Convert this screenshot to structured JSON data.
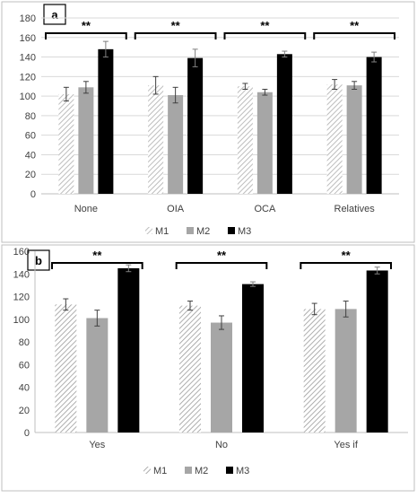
{
  "chart_data": [
    {
      "panel_label": "a",
      "type": "bar",
      "categories": [
        "None",
        "OIA",
        "OCA",
        "Relatives"
      ],
      "series": [
        {
          "name": "M1",
          "pattern": "hatched-light",
          "values": [
            102,
            111,
            110,
            112
          ],
          "errors": [
            7,
            9,
            3,
            5
          ]
        },
        {
          "name": "M2",
          "pattern": "solid-gray",
          "values": [
            109,
            101,
            104,
            111
          ],
          "errors": [
            6,
            8,
            3,
            4
          ]
        },
        {
          "name": "M3",
          "pattern": "solid-black",
          "values": [
            148,
            139,
            143,
            140
          ],
          "errors": [
            8,
            9,
            3,
            5
          ]
        }
      ],
      "ylim": [
        0,
        180
      ],
      "yticks": [
        0,
        20,
        40,
        60,
        80,
        100,
        120,
        140,
        160,
        180
      ],
      "grid": true,
      "legend": "bottom-center",
      "significance": [
        "**",
        "**",
        "**",
        "**"
      ]
    },
    {
      "panel_label": "b",
      "type": "bar",
      "categories": [
        "Yes",
        "No",
        "Yes if"
      ],
      "series": [
        {
          "name": "M1",
          "pattern": "hatched-light",
          "values": [
            113,
            112,
            109
          ],
          "errors": [
            5,
            4,
            5
          ]
        },
        {
          "name": "M2",
          "pattern": "solid-gray",
          "values": [
            101,
            97,
            109
          ],
          "errors": [
            7,
            6,
            7
          ]
        },
        {
          "name": "M3",
          "pattern": "solid-black",
          "values": [
            145,
            131,
            143
          ],
          "errors": [
            3,
            2,
            3
          ]
        }
      ],
      "ylim": [
        0,
        160
      ],
      "yticks": [
        0,
        20,
        40,
        60,
        80,
        100,
        120,
        140,
        160
      ],
      "grid": false,
      "legend": "bottom-center",
      "significance": [
        "**",
        "**",
        "**"
      ]
    }
  ],
  "colors": {
    "M1": "#d0d0d0",
    "M2": "#a6a6a6",
    "M3": "#000000",
    "grid": "#d9d9d9",
    "axis": "#bfbfbf"
  }
}
